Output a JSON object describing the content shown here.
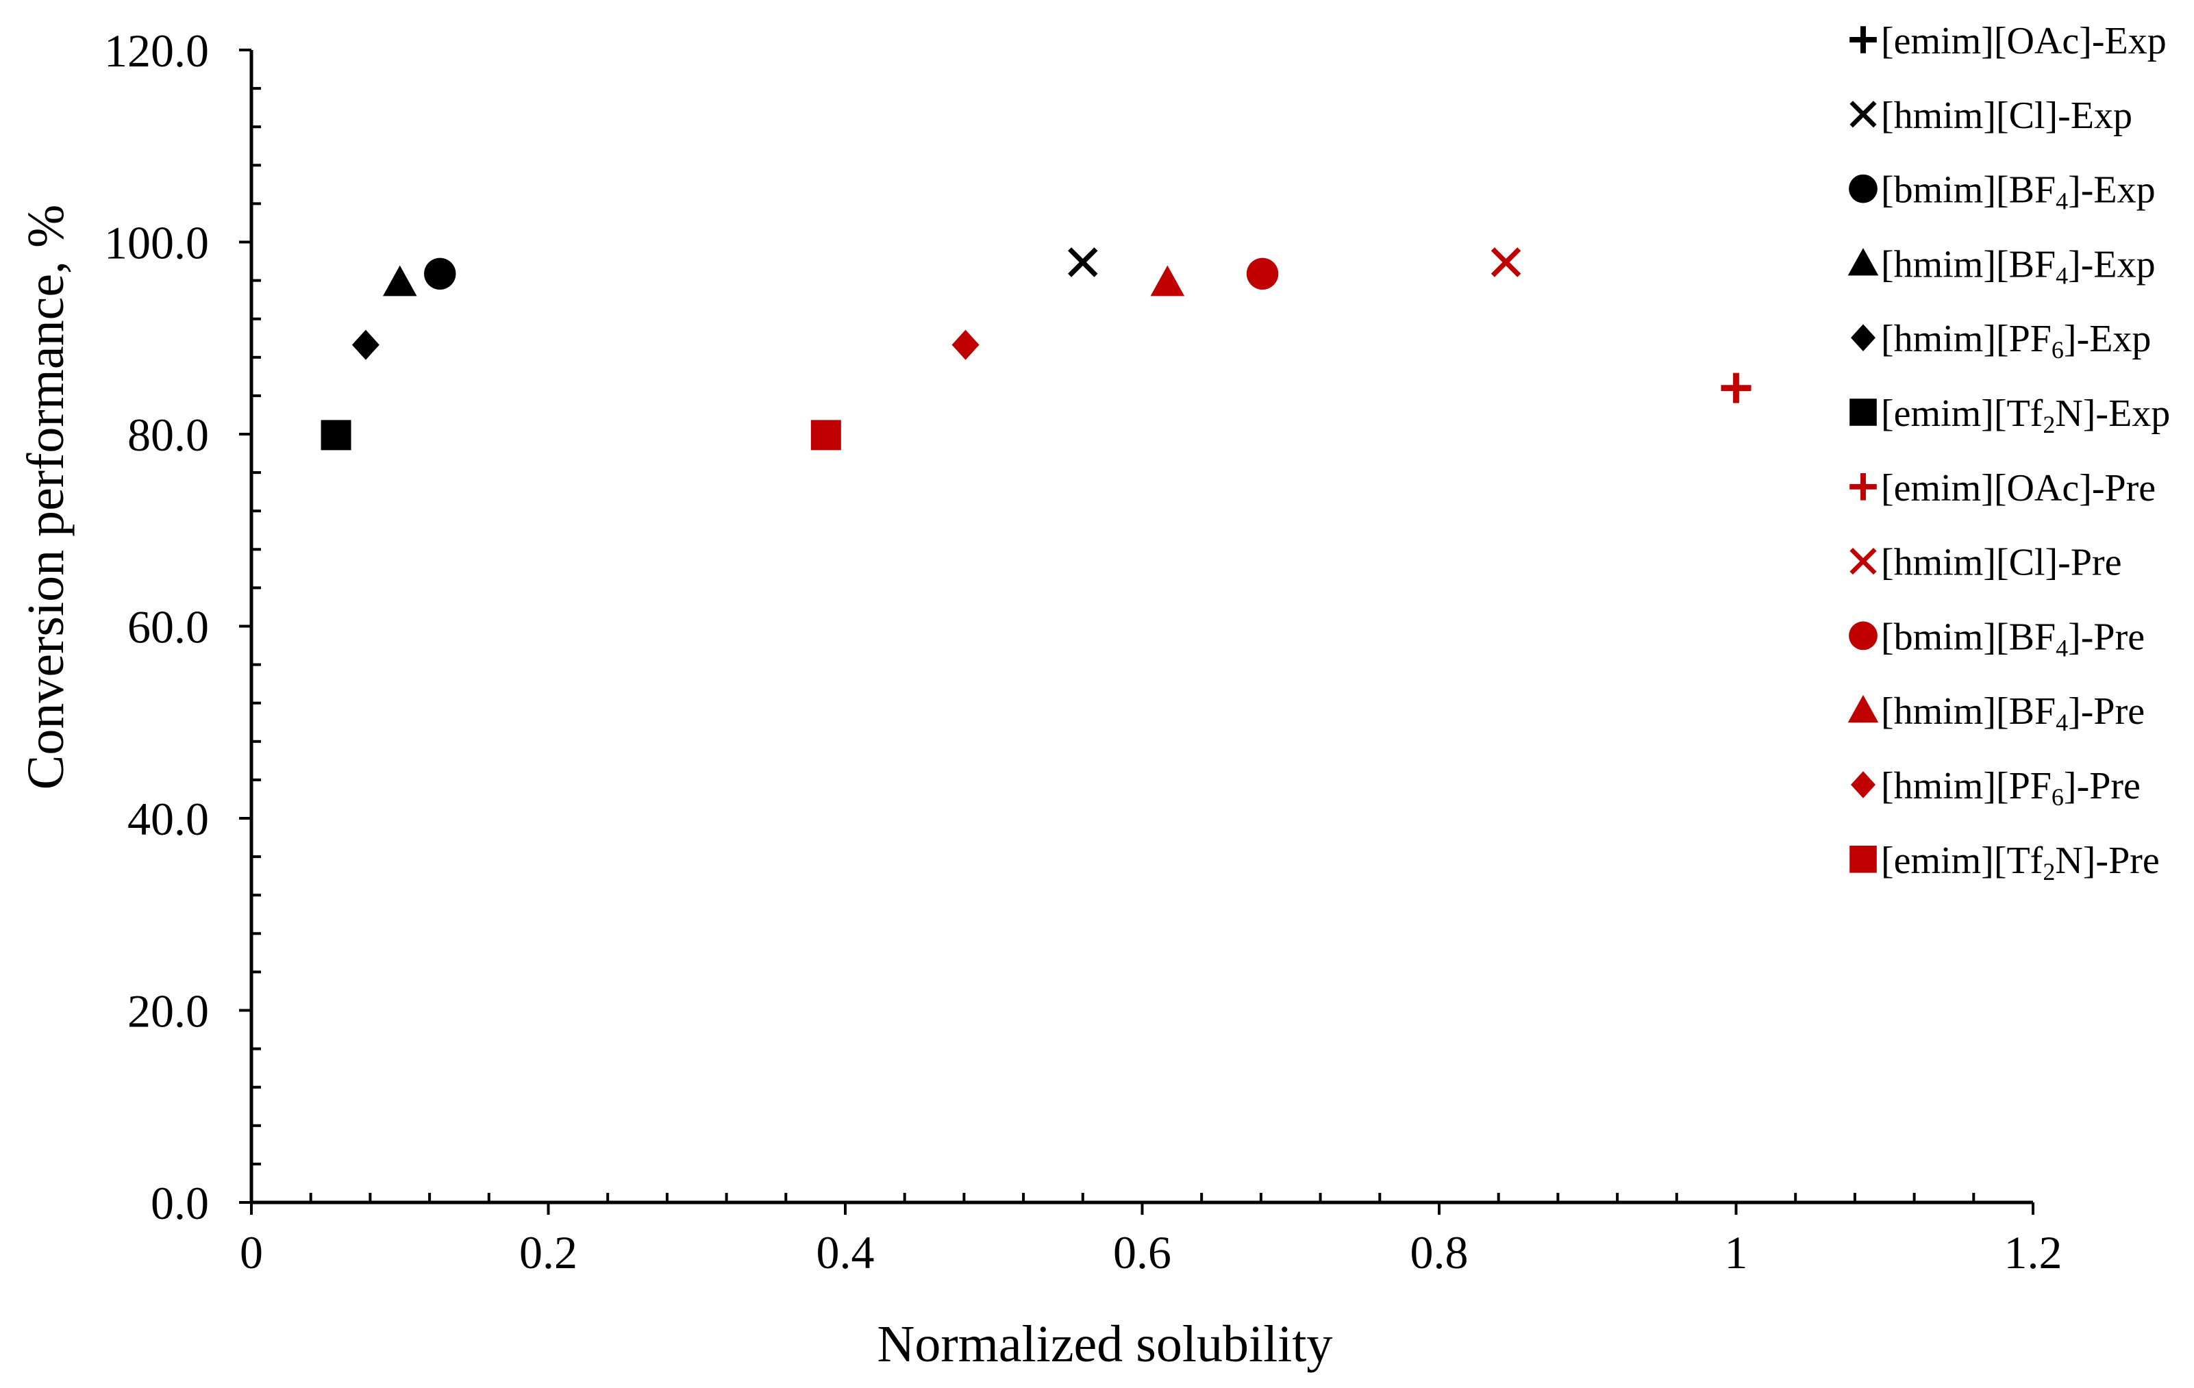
{
  "chart_data": {
    "type": "scatter",
    "title": "",
    "xlabel": "Normalized solubility",
    "ylabel": "Conversion performance, %",
    "xlim": [
      0,
      1.2
    ],
    "ylim": [
      0,
      120
    ],
    "x_major_step": 0.2,
    "x_minor_step": 0.04,
    "y_major_step": 20,
    "y_minor_step": 4,
    "x_tick_labels": [
      "0",
      "0.2",
      "0.4",
      "0.6",
      "0.8",
      "1",
      "1.2"
    ],
    "y_tick_labels": [
      "0.0",
      "20.0",
      "40.0",
      "60.0",
      "80.0",
      "100.0",
      "120.0"
    ],
    "grid": false,
    "legend_position": "right",
    "colors": {
      "exp": "#000000",
      "pre": "#c00000"
    },
    "series": [
      {
        "name": "[emim][OAc]-Exp",
        "label_parts": [
          "[emim][OAc]-Exp"
        ],
        "marker": "plus",
        "group": "exp",
        "points": []
      },
      {
        "name": "[hmim][Cl]-Exp",
        "label_parts": [
          "[hmim][Cl]-Exp"
        ],
        "marker": "cross",
        "group": "exp",
        "points": [
          [
            0.56,
            97.9
          ]
        ]
      },
      {
        "name": "[bmim][BF4]-Exp",
        "label_parts": [
          "[bmim][BF",
          "4",
          "]-Exp"
        ],
        "marker": "circle",
        "group": "exp",
        "points": [
          [
            0.127,
            96.7
          ]
        ]
      },
      {
        "name": "[hmim][BF4]-Exp",
        "label_parts": [
          "[hmim][BF",
          "4",
          "]-Exp"
        ],
        "marker": "triangle",
        "group": "exp",
        "points": [
          [
            0.1,
            95.8
          ]
        ]
      },
      {
        "name": "[hmim][PF6]-Exp",
        "label_parts": [
          "[hmim][PF",
          "6",
          "]-Exp"
        ],
        "marker": "diamond",
        "group": "exp",
        "points": [
          [
            0.077,
            89.3
          ]
        ]
      },
      {
        "name": "[emim][Tf2N]-Exp",
        "label_parts": [
          "[emim][Tf",
          "2",
          "N]-Exp"
        ],
        "marker": "square",
        "group": "exp",
        "points": [
          [
            0.057,
            79.9
          ]
        ]
      },
      {
        "name": "[emim][OAc]-Pre",
        "label_parts": [
          "[emim][OAc]-Pre"
        ],
        "marker": "plus",
        "group": "pre",
        "points": [
          [
            1.0,
            84.8
          ]
        ]
      },
      {
        "name": "[hmim][Cl]-Pre",
        "label_parts": [
          "[hmim][Cl]-Pre"
        ],
        "marker": "cross",
        "group": "pre",
        "points": [
          [
            0.845,
            97.9
          ]
        ]
      },
      {
        "name": "[bmim][BF4]-Pre",
        "label_parts": [
          "[bmim][BF",
          "4",
          "]-Pre"
        ],
        "marker": "circle",
        "group": "pre",
        "points": [
          [
            0.681,
            96.7
          ]
        ]
      },
      {
        "name": "[hmim][BF4]-Pre",
        "label_parts": [
          "[hmim][BF",
          "4",
          "]-Pre"
        ],
        "marker": "triangle",
        "group": "pre",
        "points": [
          [
            0.617,
            95.8
          ]
        ]
      },
      {
        "name": "[hmim][PF6]-Pre",
        "label_parts": [
          "[hmim][PF",
          "6",
          "]-Pre"
        ],
        "marker": "diamond",
        "group": "pre",
        "points": [
          [
            0.481,
            89.3
          ]
        ]
      },
      {
        "name": "[emim][Tf2N]-Pre",
        "label_parts": [
          "[emim][Tf",
          "2",
          "N]-Pre"
        ],
        "marker": "square",
        "group": "pre",
        "points": [
          [
            0.387,
            79.9
          ]
        ]
      }
    ]
  }
}
